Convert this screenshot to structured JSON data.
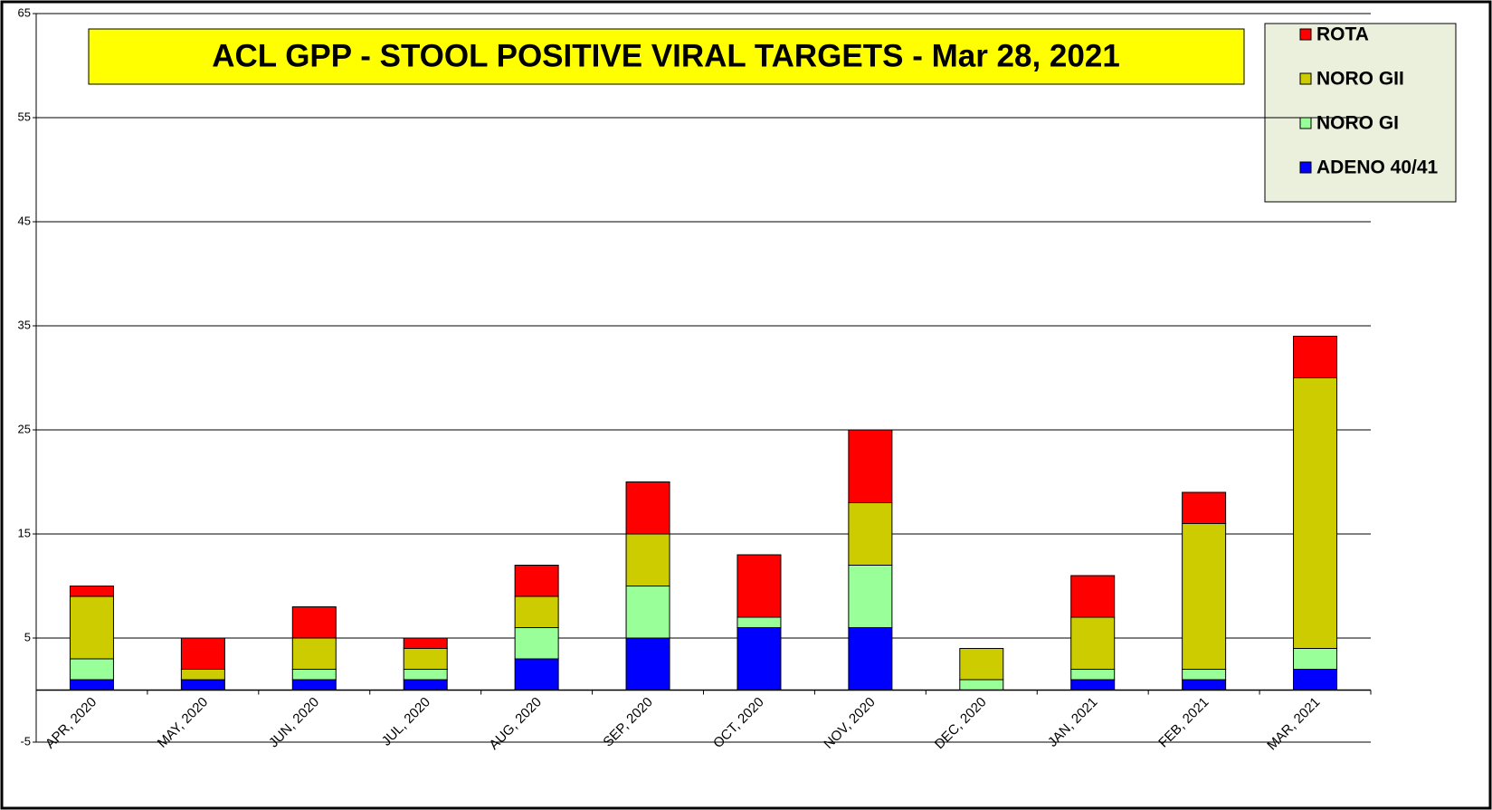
{
  "chart_data": {
    "type": "stacked-bar",
    "title": "ACL GPP - STOOL POSITIVE VIRAL TARGETS - Mar 28, 2021",
    "categories": [
      "APR, 2020",
      "MAY, 2020",
      "JUN, 2020",
      "JUL, 2020",
      "AUG, 2020",
      "SEP, 2020",
      "OCT, 2020",
      "NOV, 2020",
      "DEC, 2020",
      "JAN, 2021",
      "FEB, 2021",
      "MAR, 2021"
    ],
    "series": [
      {
        "name": "ADENO 40/41",
        "color": "#0000ff",
        "values": [
          1,
          1,
          1,
          1,
          3,
          5,
          6,
          6,
          0,
          1,
          1,
          2
        ]
      },
      {
        "name": "NORO GI",
        "color": "#99ff99",
        "values": [
          2,
          0,
          1,
          1,
          3,
          5,
          1,
          6,
          1,
          1,
          1,
          2
        ]
      },
      {
        "name": "NORO GII",
        "color": "#cccc00",
        "values": [
          6,
          1,
          3,
          2,
          3,
          5,
          0,
          6,
          3,
          5,
          14,
          26
        ]
      },
      {
        "name": "ROTA",
        "color": "#ff0000",
        "values": [
          1,
          3,
          3,
          1,
          3,
          5,
          6,
          7,
          0,
          4,
          3,
          4
        ]
      }
    ],
    "ylim": [
      -5,
      65
    ],
    "yticks": [
      -5,
      5,
      15,
      25,
      35,
      45,
      55,
      65
    ],
    "grid": true,
    "legend": "top-right"
  }
}
